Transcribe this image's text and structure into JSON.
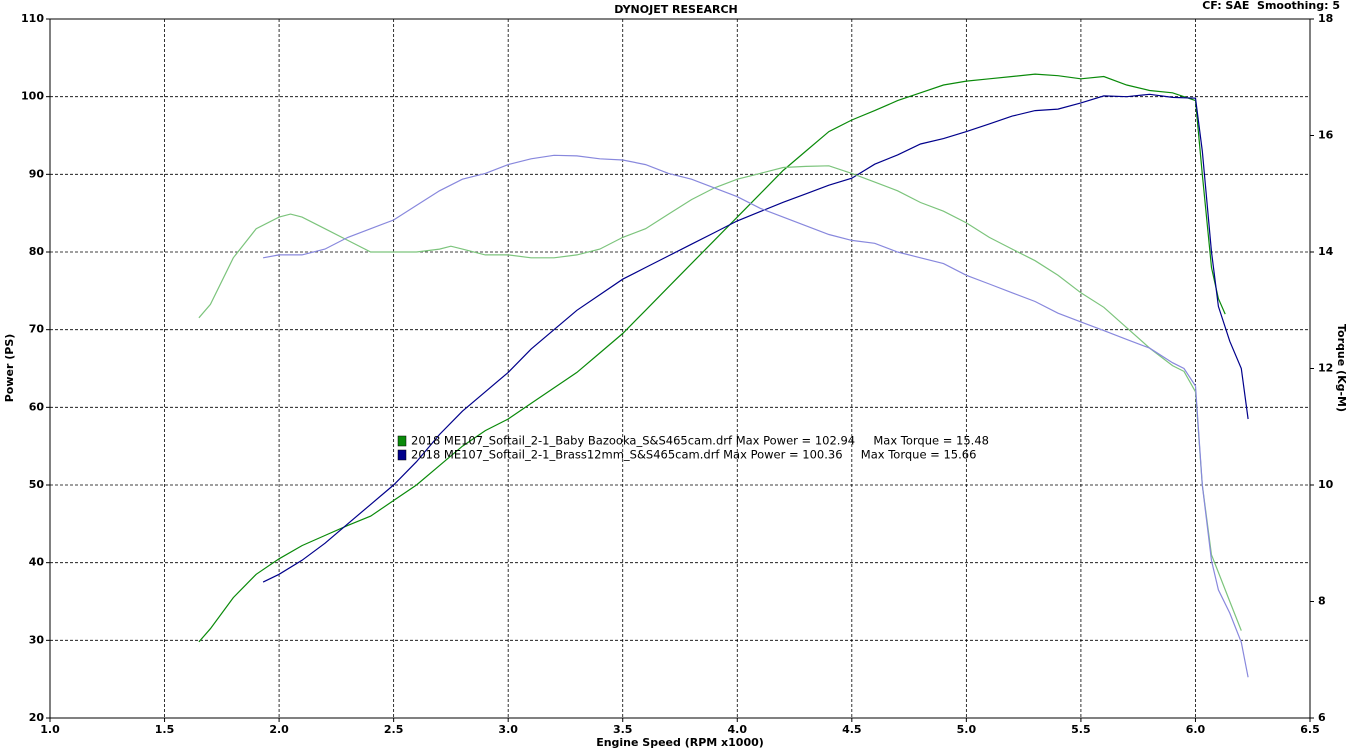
{
  "chart_data": {
    "type": "line",
    "title": "DYNOJET RESEARCH",
    "subtitle": "CF: SAE  Smoothing: 5",
    "xlabel": "Engine Speed (RPM x1000)",
    "ylabel": "Power (PS)",
    "y2label": "Torque (Kg-M)",
    "xlim": [
      1.0,
      6.5
    ],
    "xticks": [
      {
        "value": 1,
        "label": "1.0"
      },
      1.5,
      {
        "value": 2,
        "label": "2.0"
      },
      2.5,
      {
        "value": 3,
        "label": "3.0"
      },
      3.5,
      {
        "value": 4,
        "label": "4.0"
      },
      4.5,
      {
        "value": 5,
        "label": "5.0"
      },
      5.5,
      {
        "value": 6,
        "label": "6.0"
      },
      6.5
    ],
    "ylim": [
      20,
      110
    ],
    "yticks": [
      20,
      30,
      40,
      50,
      60,
      70,
      80,
      90,
      100,
      110
    ],
    "y2lim": [
      6,
      18
    ],
    "y2ticks": [
      6,
      8,
      10,
      12,
      14,
      16,
      18
    ],
    "grid": true,
    "series": [
      {
        "name": "2018 ME107_Softail_2-1_Baby Bazooka_S&S465cam.drf Max Power = 102.94     Max Torque = 15.48",
        "color": "#0a8a0a",
        "x": [
          1.65,
          1.7,
          1.8,
          1.9,
          2.0,
          2.1,
          2.2,
          2.3,
          2.4,
          2.5,
          2.6,
          2.7,
          2.8,
          2.9,
          3.0,
          3.1,
          3.2,
          3.3,
          3.4,
          3.5,
          3.6,
          3.7,
          3.8,
          3.9,
          4.0,
          4.1,
          4.2,
          4.3,
          4.4,
          4.5,
          4.6,
          4.7,
          4.8,
          4.9,
          5.0,
          5.1,
          5.2,
          5.3,
          5.4,
          5.5,
          5.6,
          5.7,
          5.8,
          5.9,
          6.0,
          6.03,
          6.07,
          6.1,
          6.13
        ],
        "values": [
          29.8,
          31.5,
          35.5,
          38.5,
          40.5,
          42.2,
          43.5,
          44.8,
          46,
          48,
          50,
          52.5,
          55,
          57,
          58.5,
          60.5,
          62.5,
          64.5,
          67,
          69.5,
          72.5,
          75.5,
          78.5,
          81.5,
          84.5,
          87.5,
          90.5,
          93,
          95.5,
          97,
          98.2,
          99.5,
          100.5,
          101.5,
          102,
          102.3,
          102.6,
          102.9,
          102.7,
          102.3,
          102.6,
          101.5,
          100.8,
          100.5,
          99.5,
          90,
          78,
          74,
          72
        ]
      },
      {
        "name": "2018 ME107_Softail_2-1_Brass12mm_S&S465cam.drf Max Power = 100.36     Max Torque = 15.66",
        "color": "#00008b",
        "x": [
          1.93,
          2.0,
          2.1,
          2.2,
          2.3,
          2.4,
          2.5,
          2.6,
          2.7,
          2.8,
          2.9,
          3.0,
          3.1,
          3.2,
          3.3,
          3.4,
          3.5,
          3.6,
          3.7,
          3.8,
          3.9,
          4.0,
          4.1,
          4.2,
          4.3,
          4.4,
          4.5,
          4.6,
          4.7,
          4.8,
          4.9,
          5.0,
          5.1,
          5.2,
          5.3,
          5.4,
          5.5,
          5.6,
          5.7,
          5.8,
          5.9,
          6.0,
          6.03,
          6.07,
          6.1,
          6.15,
          6.2,
          6.23
        ],
        "values": [
          37.5,
          38.5,
          40.3,
          42.5,
          45,
          47.5,
          50,
          53,
          56.5,
          59.5,
          62,
          64.5,
          67.5,
          70,
          72.5,
          74.5,
          76.5,
          78,
          79.5,
          81,
          82.5,
          84,
          85.2,
          86.4,
          87.5,
          88.6,
          89.5,
          91.3,
          92.5,
          93.9,
          94.6,
          95.5,
          96.5,
          97.5,
          98.2,
          98.4,
          99.2,
          100.1,
          100,
          100.3,
          99.9,
          99.8,
          93,
          80,
          73,
          68.5,
          65,
          58.5
        ]
      },
      {
        "color": "#7cc47c",
        "axis": "y2",
        "x": [
          1.65,
          1.7,
          1.8,
          1.9,
          2.0,
          2.05,
          2.1,
          2.2,
          2.3,
          2.4,
          2.5,
          2.6,
          2.7,
          2.75,
          2.8,
          2.9,
          3.0,
          3.1,
          3.2,
          3.3,
          3.4,
          3.5,
          3.6,
          3.7,
          3.8,
          3.9,
          4.0,
          4.1,
          4.2,
          4.3,
          4.4,
          4.5,
          4.6,
          4.7,
          4.8,
          4.9,
          5.0,
          5.1,
          5.2,
          5.3,
          5.4,
          5.5,
          5.6,
          5.7,
          5.8,
          5.9,
          5.95,
          6.0,
          6.03,
          6.07,
          6.1,
          6.15,
          6.2
        ],
        "values": [
          12.87,
          13.1,
          13.9,
          14.4,
          14.6,
          14.65,
          14.6,
          14.4,
          14.2,
          14.0,
          14.0,
          14.0,
          14.05,
          14.1,
          14.05,
          13.95,
          13.95,
          13.9,
          13.9,
          13.95,
          14.05,
          14.25,
          14.4,
          14.65,
          14.9,
          15.1,
          15.25,
          15.35,
          15.45,
          15.47,
          15.48,
          15.35,
          15.2,
          15.05,
          14.85,
          14.7,
          14.5,
          14.25,
          14.05,
          13.85,
          13.6,
          13.3,
          13.05,
          12.7,
          12.35,
          12.05,
          11.95,
          11.6,
          10.0,
          8.8,
          8.5,
          8.0,
          7.5
        ]
      },
      {
        "color": "#8888dd",
        "axis": "y2",
        "x": [
          1.93,
          2.0,
          2.1,
          2.2,
          2.3,
          2.4,
          2.5,
          2.6,
          2.7,
          2.8,
          2.9,
          3.0,
          3.1,
          3.2,
          3.3,
          3.4,
          3.5,
          3.6,
          3.7,
          3.8,
          3.9,
          4.0,
          4.1,
          4.2,
          4.3,
          4.4,
          4.5,
          4.6,
          4.7,
          4.8,
          4.9,
          5.0,
          5.1,
          5.2,
          5.3,
          5.4,
          5.5,
          5.6,
          5.7,
          5.8,
          5.9,
          5.95,
          6.0,
          6.03,
          6.07,
          6.1,
          6.15,
          6.2,
          6.23
        ],
        "values": [
          13.9,
          13.95,
          13.95,
          14.05,
          14.25,
          14.4,
          14.55,
          14.8,
          15.05,
          15.25,
          15.35,
          15.5,
          15.6,
          15.66,
          15.65,
          15.6,
          15.58,
          15.5,
          15.35,
          15.25,
          15.1,
          14.95,
          14.75,
          14.6,
          14.45,
          14.3,
          14.2,
          14.15,
          14.0,
          13.9,
          13.8,
          13.6,
          13.45,
          13.3,
          13.15,
          12.95,
          12.8,
          12.65,
          12.5,
          12.35,
          12.1,
          12.0,
          11.7,
          10.0,
          8.7,
          8.2,
          7.8,
          7.3,
          6.7
        ]
      }
    ]
  }
}
